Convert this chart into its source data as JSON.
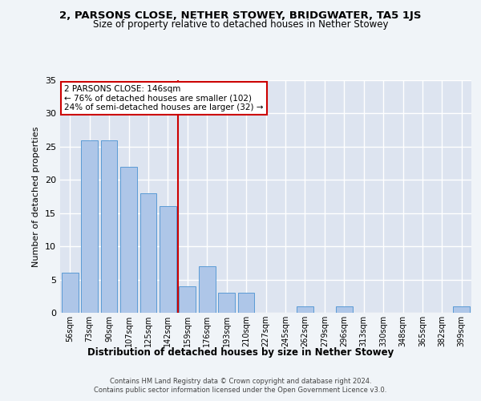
{
  "title": "2, PARSONS CLOSE, NETHER STOWEY, BRIDGWATER, TA5 1JS",
  "subtitle": "Size of property relative to detached houses in Nether Stowey",
  "xlabel": "Distribution of detached houses by size in Nether Stowey",
  "ylabel": "Number of detached properties",
  "annotation_lines": [
    "2 PARSONS CLOSE: 146sqm",
    "← 76% of detached houses are smaller (102)",
    "24% of semi-detached houses are larger (32) →"
  ],
  "categories": [
    "56sqm",
    "73sqm",
    "90sqm",
    "107sqm",
    "125sqm",
    "142sqm",
    "159sqm",
    "176sqm",
    "193sqm",
    "210sqm",
    "227sqm",
    "245sqm",
    "262sqm",
    "279sqm",
    "296sqm",
    "313sqm",
    "330sqm",
    "348sqm",
    "365sqm",
    "382sqm",
    "399sqm"
  ],
  "values": [
    6,
    26,
    26,
    22,
    18,
    16,
    4,
    7,
    3,
    3,
    0,
    0,
    1,
    0,
    1,
    0,
    0,
    0,
    0,
    0,
    1
  ],
  "bar_color": "#aec6e8",
  "bar_edge_color": "#5a9bd5",
  "vline_x": 5.5,
  "vline_color": "#cc0000",
  "annotation_box_color": "#cc0000",
  "fig_bg_color": "#f0f4f8",
  "plot_bg_color": "#dde4f0",
  "grid_color": "#ffffff",
  "ylim": [
    0,
    35
  ],
  "yticks": [
    0,
    5,
    10,
    15,
    20,
    25,
    30,
    35
  ],
  "footer_line1": "Contains HM Land Registry data © Crown copyright and database right 2024.",
  "footer_line2": "Contains public sector information licensed under the Open Government Licence v3.0."
}
